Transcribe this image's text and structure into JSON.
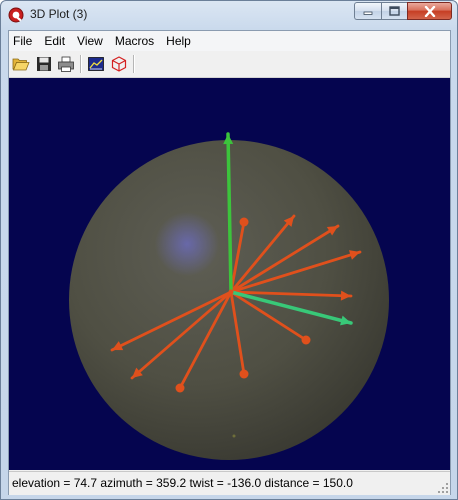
{
  "window": {
    "title": "3D Plot (3)",
    "icon": "app-q-icon"
  },
  "menu": {
    "items": [
      {
        "label": "File"
      },
      {
        "label": "Edit"
      },
      {
        "label": "View"
      },
      {
        "label": "Macros"
      },
      {
        "label": "Help"
      }
    ]
  },
  "toolbar": {
    "buttons": [
      {
        "icon": "open-folder-icon"
      },
      {
        "icon": "save-icon"
      },
      {
        "icon": "print-icon"
      },
      {
        "icon": "plot-settings-icon"
      },
      {
        "icon": "3d-cube-icon"
      }
    ]
  },
  "plot": {
    "background_color": "#05054f",
    "sphere_color": "#4a4a3a",
    "vector_color": "#e0501c",
    "axis_vertical_color": "#3cc43c",
    "axis_secondary_color": "#38c878"
  },
  "status": {
    "text": "elevation = 74.7 azimuth = 359.2 twist = -136.0 distance = 150.0"
  }
}
